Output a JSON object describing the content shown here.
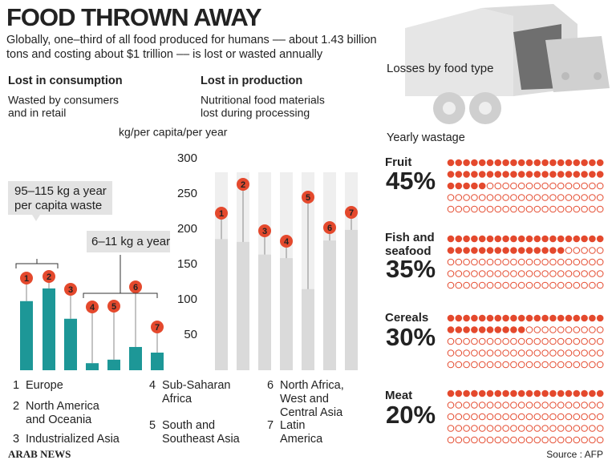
{
  "header": {
    "title": "FOOD THROWN AWAY",
    "subtitle": [
      "Globally, one–third of all food produced for humans –– about 1.43 billion",
      "tons and costing about $1 trillion –– is lost or wasted annually"
    ]
  },
  "sections": [
    {
      "title": "Lost in consumption",
      "description": [
        "Wasted by consumers",
        "and in retail"
      ]
    },
    {
      "title": "Lost in production",
      "description": [
        "Nutritional food materials",
        "lost during processing"
      ]
    }
  ],
  "unit_label": "kg/per capita/per year",
  "chart_data": [
    {
      "type": "bar",
      "categories": [
        "1",
        "2",
        "3",
        "4",
        "5",
        "6",
        "7"
      ],
      "values": [
        98,
        116,
        73,
        10,
        15,
        33,
        25
      ],
      "color": "#1d9797",
      "marker_color": "#e4492d",
      "ylim": [
        0,
        300
      ],
      "annotations": [
        {
          "lines": [
            "95–115 kg a year",
            "per capita waste"
          ]
        },
        {
          "lines": [
            "6–11 kg a year"
          ]
        }
      ]
    },
    {
      "type": "bar",
      "categories": [
        "1",
        "2",
        "3",
        "4",
        "5",
        "6",
        "7"
      ],
      "values": [
        186,
        182,
        164,
        159,
        115,
        184,
        199
      ],
      "color": "#dadada",
      "marker_color": "#e4492d",
      "ylim": [
        0,
        300
      ],
      "yticks": [
        50,
        100,
        150,
        200,
        250,
        300
      ]
    },
    {
      "type": "waffle",
      "title": "Losses by food type",
      "subtitle": "Yearly wastage",
      "categories": [
        "Fruit",
        "Fish and seafood",
        "Cereals",
        "Meat"
      ],
      "values": [
        45,
        35,
        30,
        20
      ],
      "value_labels": [
        "45%",
        "35%",
        "30%",
        "20%"
      ],
      "color": "#e4492d",
      "label_color": "#1d9797"
    }
  ],
  "regions": [
    {
      "number": "1",
      "name": [
        "Europe"
      ]
    },
    {
      "number": "2",
      "name": [
        "North America",
        "and Oceania"
      ]
    },
    {
      "number": "3",
      "name": [
        "Industrialized Asia"
      ]
    },
    {
      "number": "4",
      "name": [
        "Sub-Saharan",
        "Africa"
      ]
    },
    {
      "number": "5",
      "name": [
        "South and",
        "Southeast Asia"
      ]
    },
    {
      "number": "6",
      "name": [
        "North Africa,",
        "West and",
        "Central Asia"
      ]
    },
    {
      "number": "7",
      "name": [
        "Latin",
        "America"
      ]
    }
  ],
  "footer": {
    "brand": "ARAB NEWS",
    "source": "Source : AFP"
  }
}
